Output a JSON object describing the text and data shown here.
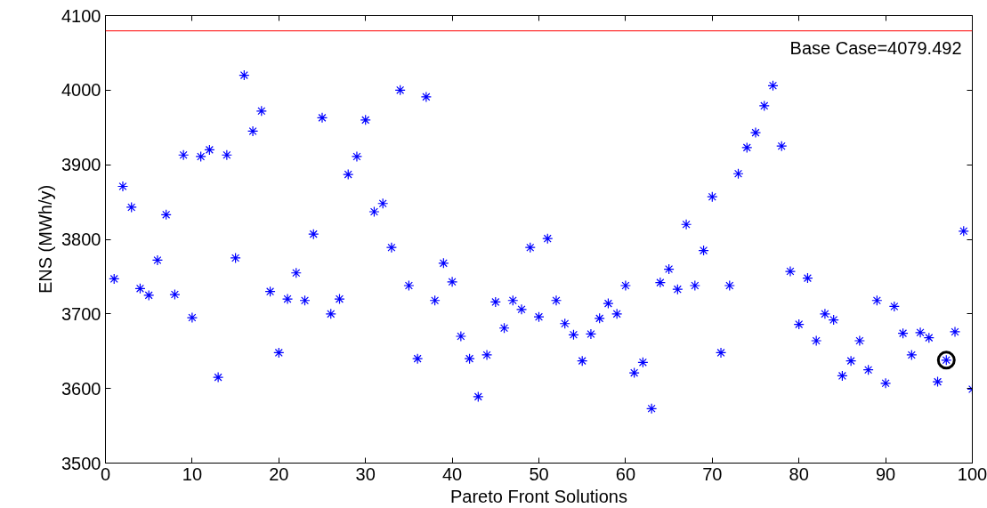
{
  "chart_data": {
    "type": "scatter",
    "xlabel": "Pareto Front Solutions",
    "ylabel": "ENS (MWh/y)",
    "xlim": [
      0,
      100
    ],
    "ylim": [
      3500,
      4100
    ],
    "xticks": [
      0,
      10,
      20,
      30,
      40,
      50,
      60,
      70,
      80,
      90,
      100
    ],
    "yticks": [
      3500,
      3600,
      3700,
      3800,
      3900,
      4000,
      4100
    ],
    "grid": false,
    "marker": "cross",
    "series": [
      {
        "color": "#0000ff",
        "x": [
          1,
          2,
          3,
          4,
          5,
          6,
          7,
          8,
          9,
          10,
          11,
          12,
          13,
          14,
          15,
          16,
          17,
          18,
          19,
          20,
          21,
          22,
          23,
          24,
          25,
          26,
          27,
          28,
          29,
          30,
          31,
          32,
          33,
          34,
          35,
          36,
          37,
          38,
          39,
          40,
          41,
          42,
          43,
          44,
          45,
          46,
          47,
          48,
          49,
          50,
          51,
          52,
          53,
          54,
          55,
          56,
          57,
          58,
          59,
          60,
          61,
          62,
          63,
          64,
          65,
          66,
          67,
          68,
          69,
          70,
          71,
          72,
          73,
          74,
          75,
          76,
          77,
          78,
          79,
          80,
          81,
          82,
          83,
          84,
          85,
          86,
          87,
          88,
          89,
          90,
          91,
          92,
          93,
          94,
          95,
          96,
          97,
          98,
          99,
          100
        ],
        "values": [
          3747,
          3871,
          3843,
          3734,
          3725,
          3772,
          3833,
          3726,
          3913,
          3695,
          3911,
          3920,
          3615,
          3913,
          3775,
          4020,
          3945,
          3972,
          3730,
          3648,
          3720,
          3755,
          3718,
          3807,
          3963,
          3700,
          3720,
          3887,
          3911,
          3960,
          3837,
          3848,
          3789,
          4000,
          3738,
          3640,
          3991,
          3718,
          3768,
          3743,
          3670,
          3640,
          3589,
          3645,
          3716,
          3681,
          3718,
          3706,
          3789,
          3696,
          3801,
          3718,
          3687,
          3672,
          3637,
          3673,
          3694,
          3714,
          3700,
          3738,
          3621,
          3635,
          3573,
          3742,
          3760,
          3733,
          3820,
          3738,
          3785,
          3857,
          3648,
          3738,
          3888,
          3923,
          3943,
          3979,
          4006,
          3925,
          3757,
          3686,
          3748,
          3664,
          3700,
          3692,
          3617,
          3637,
          3664,
          3625,
          3718,
          3607,
          3710,
          3674,
          3645,
          3675,
          3668,
          3609,
          3638,
          3676,
          3811,
          3599
        ]
      },
      {
        "color": "#000000",
        "marker": "circle",
        "x": [
          97
        ],
        "values": [
          3638
        ]
      }
    ],
    "ref_lines": [
      {
        "axis": "y",
        "value": 4079.492,
        "label": "Base Case=4079.492",
        "color": "#ff0000"
      }
    ]
  }
}
